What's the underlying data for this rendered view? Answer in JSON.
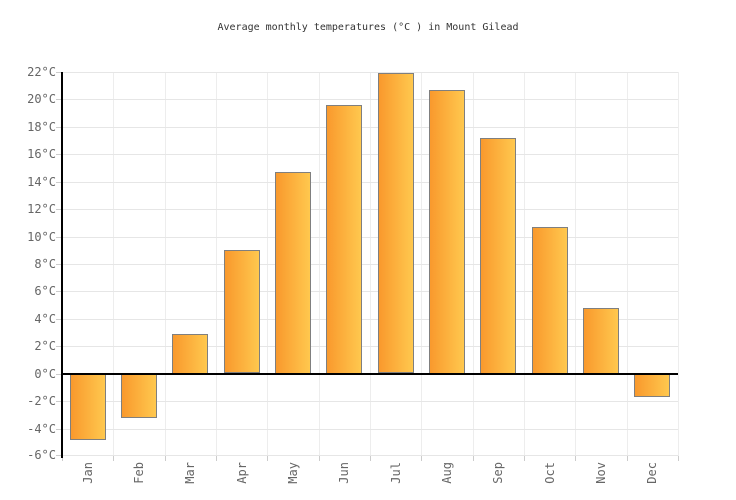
{
  "chart_data": {
    "type": "bar",
    "title": "Average monthly temperatures (°C ) in Mount Gilead",
    "categories": [
      "Jan",
      "Feb",
      "Mar",
      "Apr",
      "May",
      "Jun",
      "Jul",
      "Aug",
      "Sep",
      "Oct",
      "Nov",
      "Dec"
    ],
    "values": [
      -4.8,
      -3.2,
      2.9,
      9.0,
      14.7,
      19.6,
      21.9,
      20.7,
      17.2,
      10.7,
      4.8,
      -1.7
    ],
    "unit": "°C",
    "ylim": [
      -6,
      22
    ],
    "ytick_step": 2,
    "ytick_labels": [
      "22°C",
      "20°C",
      "18°C",
      "16°C",
      "14°C",
      "12°C",
      "10°C",
      "8°C",
      "6°C",
      "4°C",
      "2°C",
      "0°C",
      "-2°C",
      "-4°C",
      "-6°C"
    ],
    "grid": "on",
    "legend": "none",
    "xlabel": "",
    "ylabel": ""
  },
  "style": {
    "background": "#ffffff",
    "bar_gradient_start": "#F9992D",
    "bar_gradient_end": "#FFC84E",
    "bar_border": "#7f7f7f",
    "axis_color": "#000000",
    "grid_color_h": "#e6e6e6",
    "grid_color_v": "#ededed",
    "tick_color": "#cccccc",
    "label_color": "#666666",
    "title_color": "#333333"
  }
}
